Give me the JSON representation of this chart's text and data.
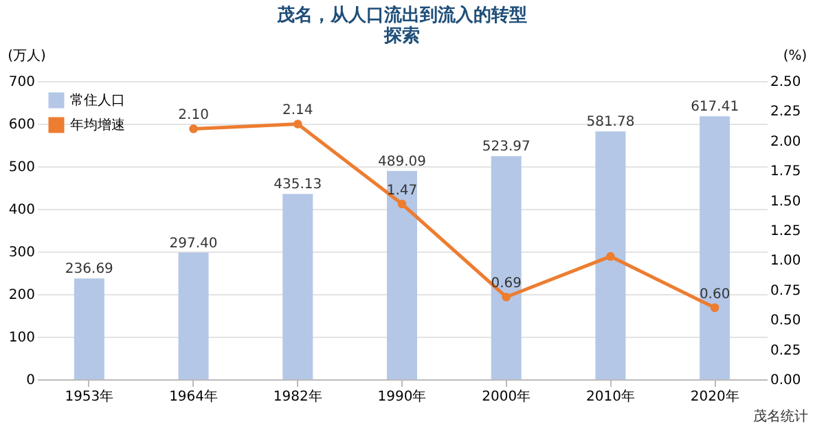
{
  "chart_data": {
    "type": "bar",
    "title": [
      "茂名，从人口流出到流入的转型",
      "探索"
    ],
    "categories": [
      "1953年",
      "1964年",
      "1982年",
      "1990年",
      "2000年",
      "2010年",
      "2020年"
    ],
    "series": [
      {
        "name": "常住人口",
        "type": "bar",
        "color": "#b4c7e7",
        "values": [
          236.69,
          297.4,
          435.13,
          489.09,
          523.97,
          581.78,
          617.41
        ],
        "value_labels": [
          "236.69",
          "297.40",
          "435.13",
          "489.09",
          "523.97",
          "581.78",
          "617.41"
        ]
      },
      {
        "name": "年均增速",
        "type": "line",
        "axis": "y2",
        "color": "#ed7d31",
        "marker": "circle",
        "values": [
          null,
          2.1,
          2.14,
          1.47,
          0.69,
          1.03,
          0.6
        ],
        "value_labels": [
          null,
          "2.10",
          "2.14",
          "1.47",
          "0.69",
          null,
          "0.60"
        ]
      }
    ],
    "ylabel": "(万人)",
    "y2label": "(%)",
    "ylim": [
      0,
      700
    ],
    "yticks": [
      0,
      100,
      200,
      300,
      400,
      500,
      600,
      700
    ],
    "y2lim": [
      0,
      2.5
    ],
    "y2ticks": [
      {
        "value": 0,
        "label": "0.00"
      },
      {
        "value": 0.25,
        "label": "0.25"
      },
      {
        "value": 0.5,
        "label": "0.50"
      },
      {
        "value": 0.75,
        "label": "0.75"
      },
      {
        "value": 1.0,
        "label": "1.00"
      },
      {
        "value": 1.25,
        "label": "1.25"
      },
      {
        "value": 1.5,
        "label": "1.50"
      },
      {
        "value": 1.75,
        "label": "1.75"
      },
      {
        "value": 2.0,
        "label": "2.00"
      },
      {
        "value": 2.25,
        "label": "2.25"
      },
      {
        "value": 2.5,
        "label": "2.50"
      }
    ],
    "grid": "y",
    "legend": "top left",
    "annotations": [
      "茂名统计"
    ]
  }
}
